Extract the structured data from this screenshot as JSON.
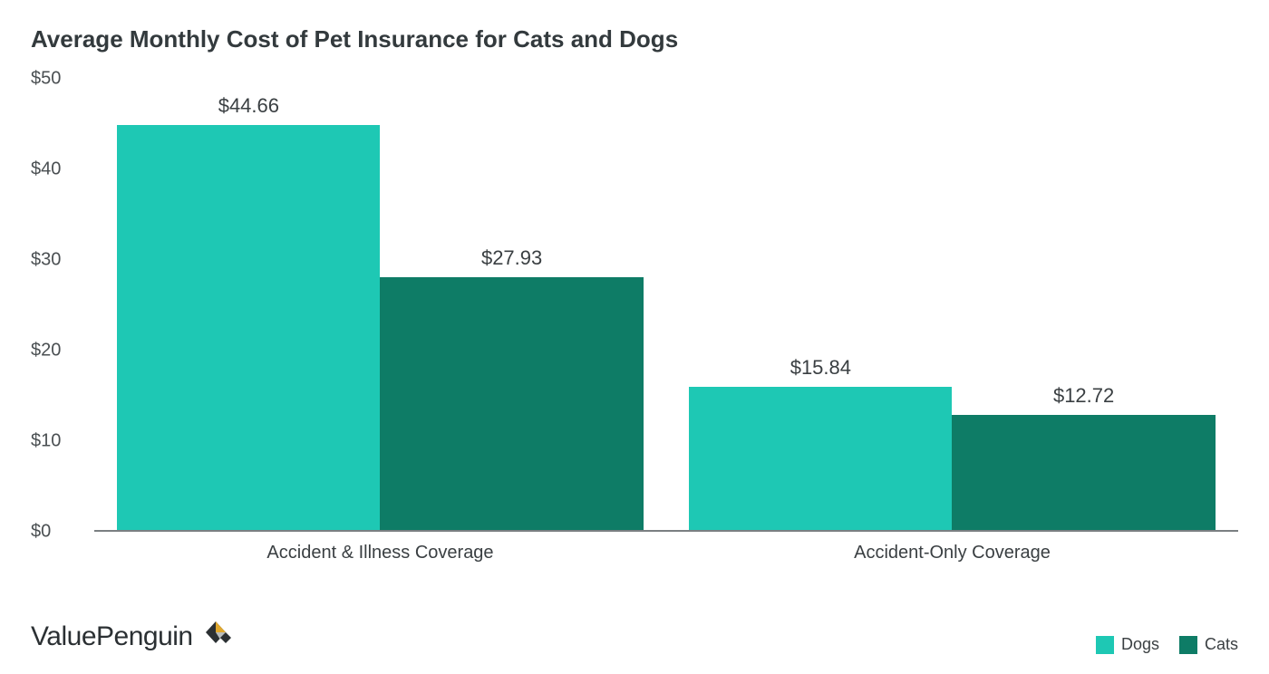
{
  "chart": {
    "type": "bar",
    "title": "Average Monthly Cost of Pet Insurance for Cats and Dogs",
    "title_fontsize": 26,
    "title_color": "#333a3d",
    "background_color": "#ffffff",
    "axis_color": "#7a7f82",
    "label_color": "#3a3f42",
    "tick_fontsize": 20,
    "barlabel_fontsize": 22,
    "ylim": [
      0,
      50
    ],
    "ytick_step": 10,
    "yticks": [
      "$0",
      "$10",
      "$20",
      "$30",
      "$40",
      "$50"
    ],
    "categories": [
      "Accident & Illness Coverage",
      "Accident-Only Coverage"
    ],
    "series": [
      {
        "name": "Dogs",
        "color": "#1ec8b4",
        "values": [
          44.66,
          15.84
        ],
        "labels": [
          "$44.66",
          "$15.84"
        ]
      },
      {
        "name": "Cats",
        "color": "#0e7c66",
        "values": [
          27.93,
          12.72
        ],
        "labels": [
          "$27.93",
          "$12.72"
        ]
      }
    ],
    "group_gap_pct": 8,
    "bar_width_pct": 46
  },
  "brand": {
    "name": "ValuePenguin",
    "colors": {
      "dark": "#2b3033",
      "gold": "#e0a82e",
      "gray": "#b9bdbd"
    }
  }
}
